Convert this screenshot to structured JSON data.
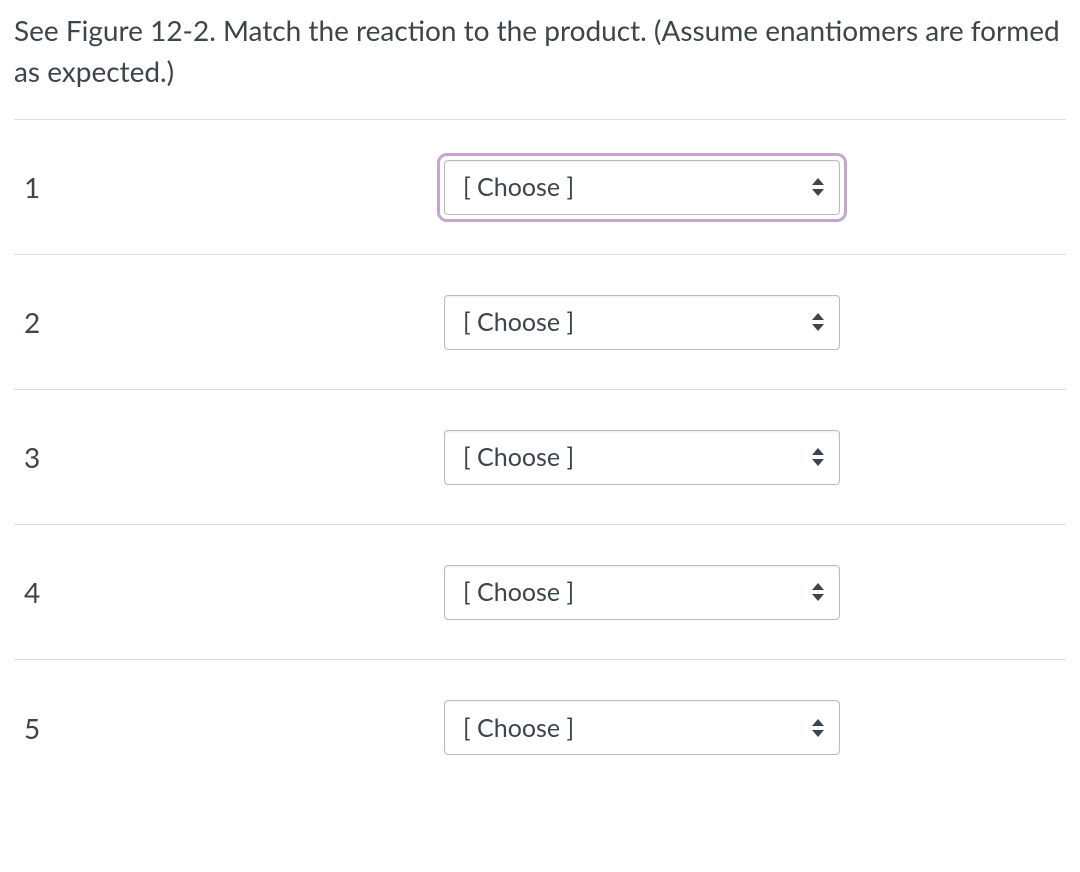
{
  "question_text": "See Figure 12-2.  Match the reaction to the product.  (Assume enantiomers are formed as expected.)",
  "placeholder": "[ Choose ]",
  "rows": [
    {
      "number": "1",
      "value": "[ Choose ]",
      "focused": true
    },
    {
      "number": "2",
      "value": "[ Choose ]",
      "focused": false
    },
    {
      "number": "3",
      "value": "[ Choose ]",
      "focused": false
    },
    {
      "number": "4",
      "value": "[ Choose ]",
      "focused": false
    },
    {
      "number": "5",
      "value": "[ Choose ]",
      "focused": false
    }
  ],
  "colors": {
    "text": "#3d454c",
    "divider": "#dcdcdc",
    "select_border": "#b9bdc0",
    "focus_ring": "#c6a6d1",
    "background": "#ffffff"
  }
}
